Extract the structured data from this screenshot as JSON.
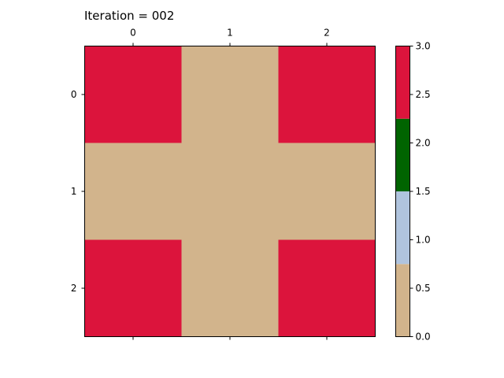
{
  "title": "Iteration = 002",
  "chart_data": {
    "type": "heatmap",
    "title": "Iteration = 002",
    "x_ticks": [
      "0",
      "1",
      "2"
    ],
    "y_ticks": [
      "0",
      "1",
      "2"
    ],
    "x_tick_position": "top",
    "grid": false,
    "matrix": [
      [
        3,
        0,
        3
      ],
      [
        0,
        0,
        0
      ],
      [
        3,
        0,
        3
      ]
    ],
    "colorbar": {
      "location": "right",
      "range": [
        0,
        3
      ],
      "ticks": [
        "0.0",
        "0.5",
        "1.0",
        "1.5",
        "2.0",
        "2.5",
        "3.0"
      ],
      "bands": [
        {
          "from": 0.0,
          "to": 0.75,
          "color": "#d2b48c"
        },
        {
          "from": 0.75,
          "to": 1.5,
          "color": "#b0c4de"
        },
        {
          "from": 1.5,
          "to": 2.25,
          "color": "#006400"
        },
        {
          "from": 2.25,
          "to": 3.0,
          "color": "#dc143c"
        }
      ]
    }
  }
}
